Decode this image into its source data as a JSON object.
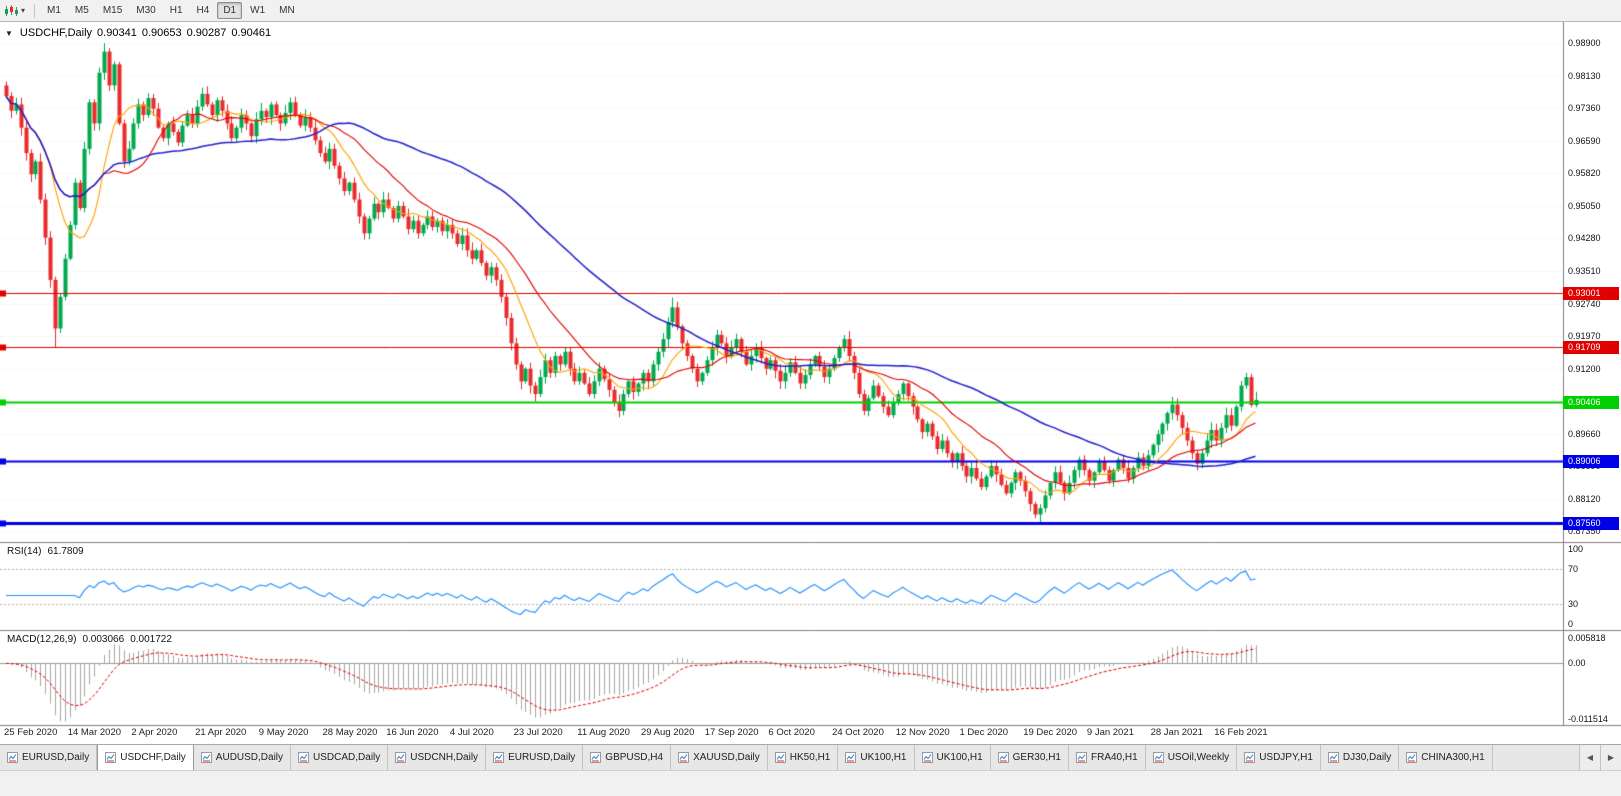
{
  "icons": {
    "title_marker": "▼",
    "menu_caret": "▾",
    "tab_scroll_left": "◀",
    "tab_scroll_right": "▶"
  },
  "toolbar": {
    "timeframes": [
      "M1",
      "M5",
      "M15",
      "M30",
      "H1",
      "H4",
      "D1",
      "W1",
      "MN"
    ],
    "active": "D1"
  },
  "chart": {
    "title_symbol": "USDCHF,Daily",
    "ohlc": {
      "open": "0.90341",
      "high": "0.90653",
      "low": "0.90287",
      "close": "0.90461"
    },
    "price_axis": [
      "0.98900",
      "0.98130",
      "0.97360",
      "0.96590",
      "0.95820",
      "0.95050",
      "0.94280",
      "0.93510",
      "0.92740",
      "0.91970",
      "0.91200",
      "0.90430",
      "0.89660",
      "0.88890",
      "0.88120",
      "0.87350"
    ],
    "hlines": [
      {
        "label": "0.93001",
        "value": 0.93001,
        "color": "#E00000",
        "width": 1
      },
      {
        "label": "0.91709",
        "value": 0.91709,
        "color": "#E00000",
        "width": 1
      },
      {
        "label": "0.90406",
        "value": 0.90406,
        "color": "#00D000",
        "width": 2
      },
      {
        "label": "0.89006",
        "value": 0.89006,
        "color": "#0000E6",
        "width": 2
      },
      {
        "label": "0.87560",
        "value": 0.8756,
        "color": "#0000E6",
        "width": 3
      }
    ],
    "dates": [
      "25 Feb 2020",
      "14 Mar 2020",
      "2 Apr 2020",
      "21 Apr 2020",
      "9 May 2020",
      "28 May 2020",
      "16 Jun 2020",
      "4 Jul 2020",
      "23 Jul 2020",
      "11 Aug 2020",
      "29 Aug 2020",
      "17 Sep 2020",
      "6 Oct 2020",
      "24 Oct 2020",
      "12 Nov 2020",
      "1 Dec 2020",
      "19 Dec 2020",
      "9 Jan 2021",
      "28 Jan 2021",
      "16 Feb 2021"
    ]
  },
  "rsi": {
    "name": "RSI(14)",
    "value": "61.7809",
    "levels": [
      "100",
      "70",
      "30",
      "0"
    ],
    "level_values": [
      100,
      70,
      30,
      0
    ]
  },
  "macd": {
    "name": "MACD(12,26,9)",
    "value_macd": "0.003066",
    "value_signal": "0.001722",
    "axis": [
      "0.005818",
      "0.00",
      "-0.011514"
    ]
  },
  "tabs": {
    "items": [
      "EURUSD,Daily",
      "USDCHF,Daily",
      "AUDUSD,Daily",
      "USDCAD,Daily",
      "USDCNH,Daily",
      "EURUSD,Daily",
      "GBPUSD,H4",
      "XAUUSD,Daily",
      "HK50,H1",
      "UK100,H1",
      "UK100,H1",
      "GER30,H1",
      "FRA40,H1",
      "USOil,Weekly",
      "USDJPY,H1",
      "DJ30,Daily",
      "CHINA300,H1"
    ],
    "active_index": 1
  },
  "colors": {
    "up": "#00A94E",
    "down": "#EA2B2B",
    "ma_fast": "#FFA000",
    "ma_mid": "#E00000",
    "ma_slow": "#2020CC",
    "rsi_line": "#1E90FF",
    "rsi_level": "#b4b4b4",
    "macd_hist": "#A8A8A8",
    "macd_signal": "#E00000",
    "grid": "#e3e3e3",
    "border": "#808080"
  },
  "chart_data": {
    "type": "candlestick",
    "symbol": "USDCHF",
    "period": "Daily",
    "visible_range": {
      "price_min": 0.871,
      "price_max": 0.994,
      "date_start": "25 Feb 2020",
      "date_end": "16 Feb 2021"
    },
    "current_ohlc": {
      "open": 0.90341,
      "high": 0.90653,
      "low": 0.90287,
      "close": 0.90461
    },
    "horizontal_levels": [
      0.93001,
      0.91709,
      0.90406,
      0.89006,
      0.8756
    ],
    "moving_averages": [
      {
        "period": 10,
        "color_key": "ma_fast"
      },
      {
        "period": 21,
        "color_key": "ma_mid"
      },
      {
        "period": 55,
        "color_key": "ma_slow"
      }
    ],
    "rsi": {
      "period": 14,
      "current": 61.7809,
      "levels": [
        70,
        30
      ]
    },
    "macd": {
      "fast": 12,
      "slow": 26,
      "signal": 9,
      "current_macd": 0.003066,
      "current_signal": 0.001722,
      "axis_max": 0.005818,
      "axis_min": -0.011514
    },
    "first_open": 0.979,
    "closes": [
      0.9765,
      0.973,
      0.9745,
      0.969,
      0.963,
      0.958,
      0.961,
      0.952,
      0.943,
      0.933,
      0.9215,
      0.929,
      0.938,
      0.946,
      0.956,
      0.95,
      0.964,
      0.975,
      0.97,
      0.982,
      0.987,
      0.979,
      0.984,
      0.97,
      0.961,
      0.964,
      0.97,
      0.9745,
      0.972,
      0.976,
      0.9735,
      0.969,
      0.9665,
      0.97,
      0.968,
      0.9655,
      0.9695,
      0.972,
      0.97,
      0.974,
      0.977,
      0.9745,
      0.972,
      0.9755,
      0.973,
      0.97,
      0.9665,
      0.969,
      0.972,
      0.97,
      0.967,
      0.971,
      0.973,
      0.9715,
      0.9745,
      0.972,
      0.97,
      0.9725,
      0.975,
      0.972,
      0.9695,
      0.9715,
      0.969,
      0.966,
      0.963,
      0.961,
      0.964,
      0.96,
      0.957,
      0.954,
      0.956,
      0.952,
      0.948,
      0.944,
      0.9475,
      0.951,
      0.949,
      0.952,
      0.95,
      0.9475,
      0.9505,
      0.948,
      0.945,
      0.947,
      0.944,
      0.946,
      0.948,
      0.9455,
      0.947,
      0.9445,
      0.946,
      0.944,
      0.9415,
      0.9435,
      0.94,
      0.938,
      0.94,
      0.937,
      0.934,
      0.936,
      0.933,
      0.929,
      0.924,
      0.918,
      0.913,
      0.909,
      0.912,
      0.908,
      0.906,
      0.91,
      0.914,
      0.911,
      0.915,
      0.913,
      0.916,
      0.912,
      0.909,
      0.911,
      0.9085,
      0.906,
      0.909,
      0.912,
      0.9095,
      0.907,
      0.904,
      0.902,
      0.906,
      0.909,
      0.9065,
      0.9085,
      0.911,
      0.909,
      0.913,
      0.916,
      0.919,
      0.923,
      0.9265,
      0.922,
      0.918,
      0.915,
      0.912,
      0.909,
      0.911,
      0.914,
      0.917,
      0.92,
      0.918,
      0.915,
      0.917,
      0.919,
      0.916,
      0.913,
      0.915,
      0.917,
      0.9145,
      0.912,
      0.914,
      0.9115,
      0.909,
      0.911,
      0.9135,
      0.911,
      0.9085,
      0.9105,
      0.913,
      0.915,
      0.9125,
      0.91,
      0.912,
      0.9145,
      0.917,
      0.919,
      0.915,
      0.911,
      0.906,
      0.902,
      0.905,
      0.908,
      0.9055,
      0.903,
      0.901,
      0.904,
      0.906,
      0.9085,
      0.9055,
      0.903,
      0.9,
      0.897,
      0.899,
      0.896,
      0.893,
      0.895,
      0.892,
      0.89,
      0.892,
      0.889,
      0.8865,
      0.8885,
      0.886,
      0.884,
      0.8865,
      0.889,
      0.887,
      0.8845,
      0.8825,
      0.885,
      0.8875,
      0.8855,
      0.883,
      0.88,
      0.8775,
      0.879,
      0.882,
      0.885,
      0.8875,
      0.885,
      0.8825,
      0.885,
      0.888,
      0.8905,
      0.888,
      0.8855,
      0.8875,
      0.89,
      0.888,
      0.8855,
      0.888,
      0.8905,
      0.8885,
      0.886,
      0.8885,
      0.891,
      0.889,
      0.8915,
      0.894,
      0.8965,
      0.899,
      0.9015,
      0.9035,
      0.901,
      0.898,
      0.895,
      0.892,
      0.8895,
      0.892,
      0.895,
      0.8975,
      0.895,
      0.898,
      0.901,
      0.8985,
      0.903,
      0.908,
      0.91,
      0.9034,
      0.90461
    ],
    "extremes": {
      "10": {
        "low": 0.917
      },
      "20": {
        "high": 0.989
      },
      "73": {
        "low": 0.9425
      },
      "125": {
        "low": 0.9005
      },
      "136": {
        "high": 0.9288
      },
      "211": {
        "low": 0.8757
      },
      "253": {
        "high": 0.911
      },
      "255": {
        "high": 0.90653,
        "low": 0.90287
      }
    }
  }
}
